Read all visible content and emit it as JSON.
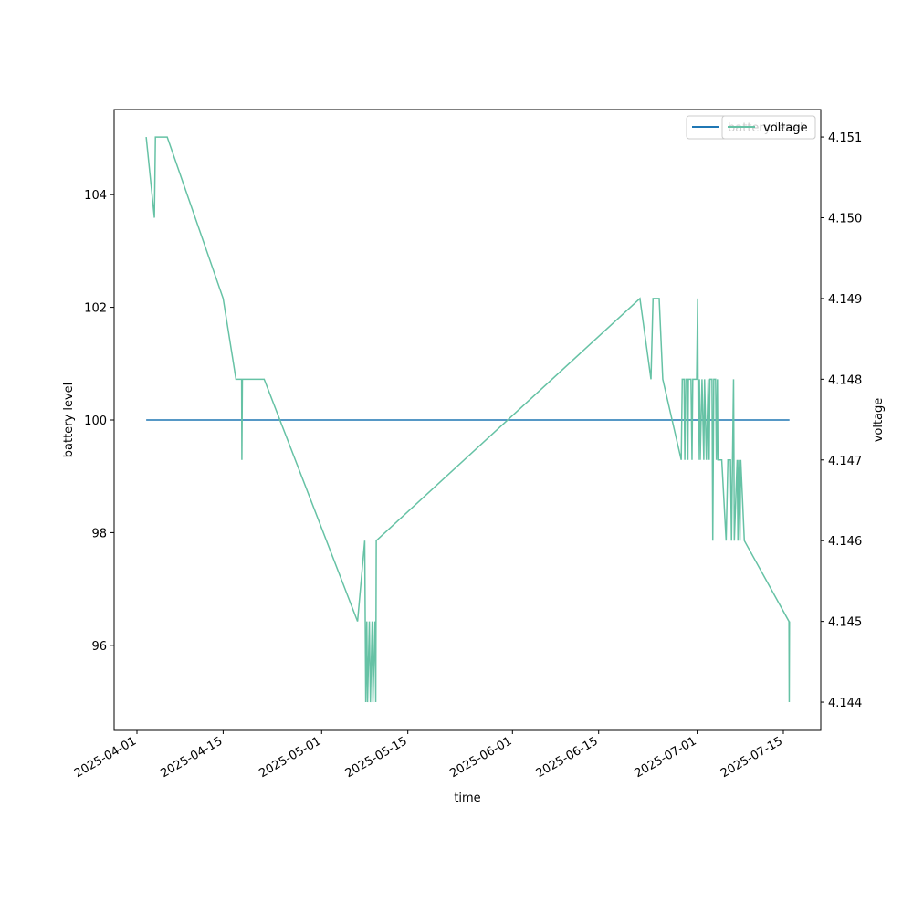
{
  "chart_data": {
    "type": "line",
    "xlabel": "time",
    "ylabel": "battery level",
    "y2label": "voltage",
    "xlim": [
      "2025-03-28T07:00",
      "2025-07-21T02:00"
    ],
    "xticks": [
      "2025-04-01",
      "2025-04-15",
      "2025-05-01",
      "2025-05-15",
      "2025-06-01",
      "2025-06-15",
      "2025-07-01",
      "2025-07-15"
    ],
    "ylim": [
      94.49,
      105.51
    ],
    "yticks": [
      96,
      98,
      100,
      102,
      104
    ],
    "y2lim": [
      4.14365,
      4.15134
    ],
    "y2ticks": [
      4.144,
      4.145,
      4.146,
      4.147,
      4.148,
      4.149,
      4.15,
      4.151
    ],
    "legend": "upper right",
    "series": [
      {
        "name": "battery level",
        "color": "#1f77b4",
        "x": [
          "2025-04-02T12:00",
          "2025-07-16T00:00"
        ],
        "values": [
          100,
          100
        ]
      },
      {
        "name": "voltage",
        "color": "#66c2a5",
        "axis": "y2",
        "x": [
          "2025-04-02T12:00",
          "2025-04-03T20:00",
          "2025-04-04T00:00",
          "2025-04-05T22:00",
          "2025-04-15T00:00",
          "2025-04-17T02:00",
          "2025-04-18T00:00",
          "2025-04-18T01:00",
          "2025-04-18T03:00",
          "2025-04-21T16:00",
          "2025-05-06T20:00",
          "2025-05-08T00:00",
          "2025-05-08T04:00",
          "2025-05-08T08:00",
          "2025-05-08T11:00",
          "2025-05-08T18:00",
          "2025-05-08T22:00",
          "2025-05-09T05:00",
          "2025-05-09T08:00",
          "2025-05-09T16:00",
          "2025-05-09T19:00",
          "2025-05-09T21:00",
          "2025-06-21T17:00",
          "2025-06-23T12:00",
          "2025-06-23T20:00",
          "2025-06-24T20:00",
          "2025-06-25T10:00",
          "2025-06-28T10:00",
          "2025-06-28T14:00",
          "2025-06-28T21:00",
          "2025-06-29T00:00",
          "2025-06-29T04:00",
          "2025-06-29T11:00",
          "2025-06-29T12:00",
          "2025-06-29T14:00",
          "2025-06-30T00:00",
          "2025-06-30T04:00",
          "2025-06-30T07:00",
          "2025-06-30T22:00",
          "2025-07-01T02:00",
          "2025-07-01T05:00",
          "2025-07-01T09:00",
          "2025-07-01T12:00",
          "2025-07-01T19:00",
          "2025-07-02T02:00",
          "2025-07-02T05:00",
          "2025-07-02T12:00",
          "2025-07-02T19:00",
          "2025-07-02T23:00",
          "2025-07-03T02:00",
          "2025-07-03T10:00",
          "2025-07-03T13:00",
          "2025-07-03T17:00",
          "2025-07-04T00:00",
          "2025-07-04T03:00",
          "2025-07-04T07:00",
          "2025-07-04T09:00",
          "2025-07-05T00:00",
          "2025-07-05T17:00",
          "2025-07-06T00:00",
          "2025-07-06T10:00",
          "2025-07-06T14:00",
          "2025-07-06T22:00",
          "2025-07-07T01:00",
          "2025-07-07T12:00",
          "2025-07-07T15:00",
          "2025-07-07T18:00",
          "2025-07-07T23:00",
          "2025-07-08T02:00",
          "2025-07-08T16:00",
          "2025-07-15T22:00",
          "2025-07-15T23:00",
          "2025-07-16T00:00"
        ],
        "values": [
          4.151,
          4.15,
          4.151,
          4.151,
          4.149,
          4.148,
          4.148,
          4.147,
          4.148,
          4.148,
          4.145,
          4.146,
          4.144,
          4.145,
          4.144,
          4.145,
          4.144,
          4.145,
          4.144,
          4.145,
          4.144,
          4.146,
          4.149,
          4.148,
          4.149,
          4.149,
          4.148,
          4.147,
          4.148,
          4.148,
          4.147,
          4.148,
          4.148,
          4.147,
          4.148,
          4.148,
          4.147,
          4.148,
          4.148,
          4.149,
          4.147,
          4.148,
          4.147,
          4.148,
          4.147,
          4.148,
          4.147,
          4.148,
          4.147,
          4.148,
          4.148,
          4.146,
          4.148,
          4.148,
          4.147,
          4.148,
          4.147,
          4.147,
          4.146,
          4.147,
          4.147,
          4.146,
          4.148,
          4.146,
          4.147,
          4.146,
          4.147,
          4.146,
          4.147,
          4.146,
          4.145,
          4.144,
          4.145
        ]
      }
    ]
  }
}
